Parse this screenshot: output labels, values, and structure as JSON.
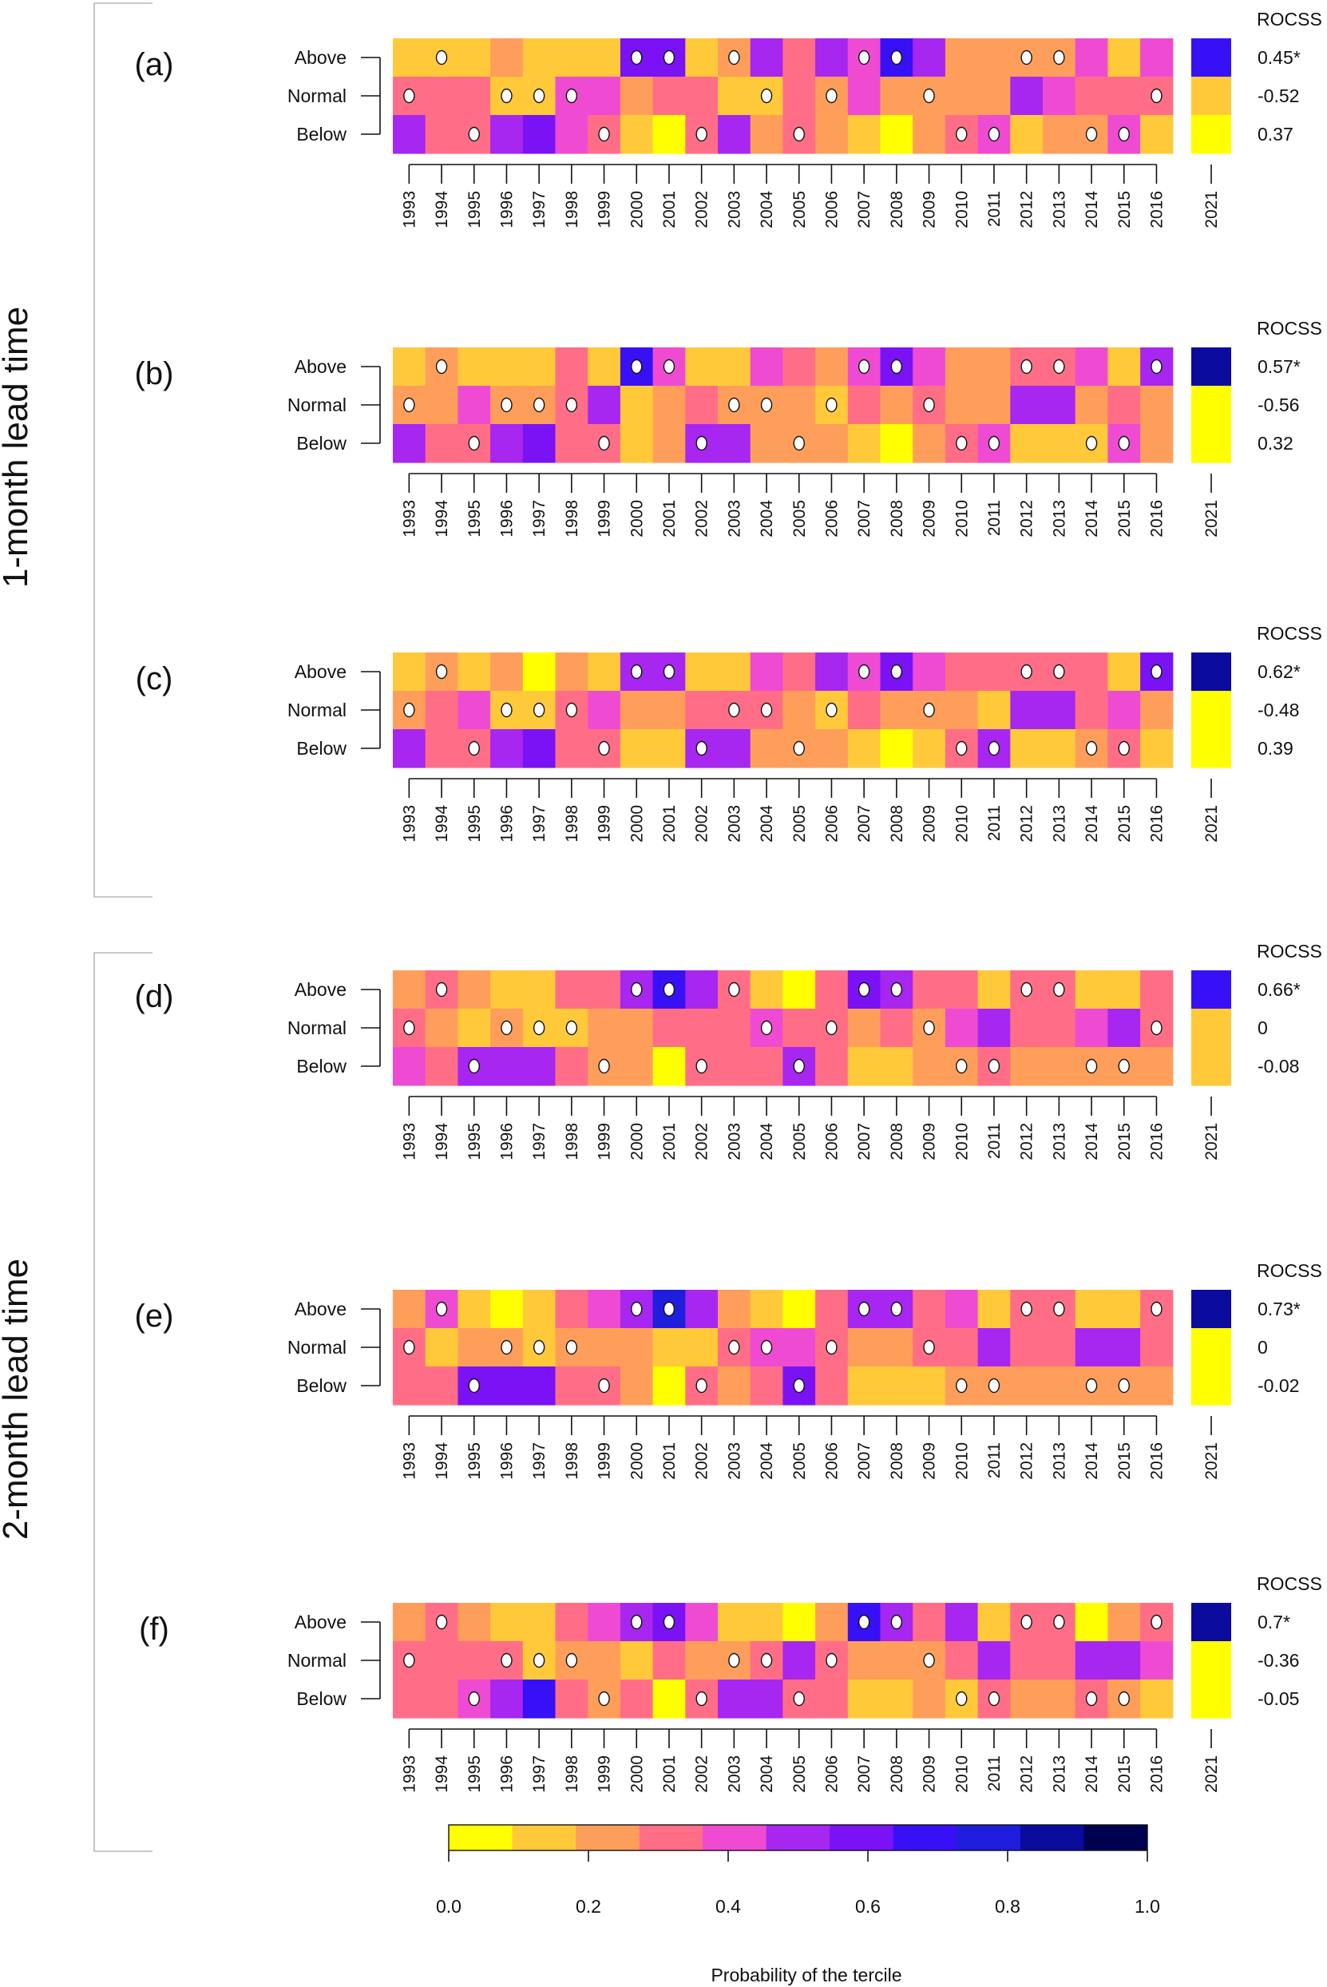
{
  "lead_times": [
    "1-month lead time",
    "2-month lead time"
  ],
  "rocss_title": "ROCSS",
  "colorbar": {
    "title": "Probability of the tercile",
    "ticks": [
      "0.0",
      "0.2",
      "0.4",
      "0.6",
      "0.8",
      "1.0"
    ],
    "colors": [
      "#FFFF00",
      "#FFC93A",
      "#FF9E5A",
      "#FF6E86",
      "#EE4BD2",
      "#A726F0",
      "#7A12F5",
      "#3810F5",
      "#1E1EDC",
      "#0B0B9E",
      "#000050"
    ]
  },
  "chart_data": {
    "type": "heatmap",
    "colorbar_label": "Probability of the tercile",
    "colorbar_range": [
      0,
      1
    ],
    "years": [
      "1993",
      "1994",
      "1995",
      "1996",
      "1997",
      "1998",
      "1999",
      "2000",
      "2001",
      "2002",
      "2003",
      "2004",
      "2005",
      "2006",
      "2007",
      "2008",
      "2009",
      "2010",
      "2011",
      "2012",
      "2013",
      "2014",
      "2015",
      "2016"
    ],
    "forecast_year": "2021",
    "rows": [
      "Above",
      "Normal",
      "Below"
    ],
    "panels": [
      {
        "label": "(a)",
        "group": "1-month lead time",
        "values": [
          [
            0.15,
            0.15,
            0.15,
            0.25,
            0.15,
            0.15,
            0.15,
            0.65,
            0.65,
            0.15,
            0.25,
            0.55,
            0.35,
            0.55,
            0.45,
            0.75,
            0.55,
            0.25,
            0.25,
            0.25,
            0.25,
            0.45,
            0.15,
            0.45
          ],
          [
            0.35,
            0.35,
            0.35,
            0.15,
            0.15,
            0.45,
            0.45,
            0.25,
            0.35,
            0.35,
            0.15,
            0.15,
            0.35,
            0.25,
            0.45,
            0.25,
            0.25,
            0.25,
            0.25,
            0.55,
            0.45,
            0.35,
            0.35,
            0.35
          ],
          [
            0.55,
            0.35,
            0.35,
            0.55,
            0.65,
            0.45,
            0.35,
            0.15,
            0.05,
            0.35,
            0.55,
            0.25,
            0.35,
            0.25,
            0.15,
            0.05,
            0.25,
            0.35,
            0.45,
            0.15,
            0.25,
            0.25,
            0.45,
            0.15
          ]
        ],
        "observed": [
          "Normal",
          "Above",
          "Below",
          "Normal",
          "Normal",
          "Normal",
          "Below",
          "Above",
          "Above",
          "Below",
          "Above",
          "Normal",
          "Below",
          "Normal",
          "Above",
          "Above",
          "Normal",
          "Below",
          "Below",
          "Above",
          "Above",
          "Below",
          "Below",
          "Normal"
        ],
        "forecast_2021": [
          0.75,
          0.15,
          0.05
        ],
        "rocss": [
          "0.45*",
          "-0.52",
          "0.37"
        ]
      },
      {
        "label": "(b)",
        "group": "1-month lead time",
        "values": [
          [
            0.15,
            0.25,
            0.15,
            0.15,
            0.15,
            0.35,
            0.15,
            0.75,
            0.45,
            0.15,
            0.15,
            0.45,
            0.35,
            0.25,
            0.45,
            0.65,
            0.45,
            0.25,
            0.25,
            0.35,
            0.35,
            0.45,
            0.15,
            0.55
          ],
          [
            0.25,
            0.25,
            0.45,
            0.25,
            0.25,
            0.35,
            0.55,
            0.15,
            0.25,
            0.35,
            0.25,
            0.25,
            0.25,
            0.15,
            0.35,
            0.25,
            0.35,
            0.25,
            0.25,
            0.55,
            0.55,
            0.25,
            0.35,
            0.25
          ],
          [
            0.55,
            0.35,
            0.35,
            0.55,
            0.65,
            0.35,
            0.35,
            0.15,
            0.25,
            0.55,
            0.55,
            0.25,
            0.25,
            0.25,
            0.15,
            0.05,
            0.25,
            0.35,
            0.45,
            0.15,
            0.15,
            0.15,
            0.45,
            0.25
          ]
        ],
        "observed": [
          "Normal",
          "Above",
          "Below",
          "Normal",
          "Normal",
          "Normal",
          "Below",
          "Above",
          "Above",
          "Below",
          "Normal",
          "Normal",
          "Below",
          "Normal",
          "Above",
          "Above",
          "Normal",
          "Below",
          "Below",
          "Above",
          "Above",
          "Below",
          "Below",
          "Above"
        ],
        "forecast_2021": [
          0.95,
          0.05,
          0.05
        ],
        "rocss": [
          "0.57*",
          "-0.56",
          "0.32"
        ]
      },
      {
        "label": "(c)",
        "group": "1-month lead time",
        "values": [
          [
            0.15,
            0.25,
            0.15,
            0.25,
            0.05,
            0.25,
            0.15,
            0.55,
            0.55,
            0.15,
            0.15,
            0.45,
            0.35,
            0.55,
            0.45,
            0.65,
            0.45,
            0.35,
            0.35,
            0.35,
            0.35,
            0.35,
            0.15,
            0.65
          ],
          [
            0.25,
            0.35,
            0.45,
            0.15,
            0.15,
            0.35,
            0.45,
            0.25,
            0.25,
            0.35,
            0.35,
            0.35,
            0.25,
            0.15,
            0.35,
            0.25,
            0.25,
            0.25,
            0.15,
            0.55,
            0.55,
            0.35,
            0.45,
            0.25
          ],
          [
            0.55,
            0.35,
            0.35,
            0.55,
            0.65,
            0.35,
            0.35,
            0.15,
            0.15,
            0.55,
            0.55,
            0.25,
            0.25,
            0.25,
            0.15,
            0.05,
            0.15,
            0.35,
            0.55,
            0.15,
            0.15,
            0.25,
            0.35,
            0.15
          ]
        ],
        "observed": [
          "Normal",
          "Above",
          "Below",
          "Normal",
          "Normal",
          "Normal",
          "Below",
          "Above",
          "Above",
          "Below",
          "Normal",
          "Normal",
          "Below",
          "Normal",
          "Above",
          "Above",
          "Normal",
          "Below",
          "Below",
          "Above",
          "Above",
          "Below",
          "Below",
          "Above"
        ],
        "forecast_2021": [
          0.95,
          0.05,
          0.05
        ],
        "rocss": [
          "0.62*",
          "-0.48",
          "0.39"
        ]
      },
      {
        "label": "(d)",
        "group": "2-month lead time",
        "values": [
          [
            0.25,
            0.35,
            0.25,
            0.15,
            0.15,
            0.35,
            0.35,
            0.55,
            0.75,
            0.55,
            0.35,
            0.15,
            0.05,
            0.35,
            0.65,
            0.55,
            0.35,
            0.35,
            0.15,
            0.35,
            0.35,
            0.15,
            0.15,
            0.35
          ],
          [
            0.35,
            0.25,
            0.15,
            0.25,
            0.15,
            0.15,
            0.25,
            0.25,
            0.35,
            0.35,
            0.35,
            0.45,
            0.35,
            0.35,
            0.25,
            0.35,
            0.25,
            0.45,
            0.55,
            0.35,
            0.35,
            0.45,
            0.55,
            0.35
          ],
          [
            0.45,
            0.35,
            0.55,
            0.55,
            0.55,
            0.35,
            0.25,
            0.25,
            0.05,
            0.35,
            0.35,
            0.35,
            0.55,
            0.35,
            0.15,
            0.15,
            0.25,
            0.25,
            0.35,
            0.25,
            0.25,
            0.25,
            0.25,
            0.25
          ]
        ],
        "observed": [
          "Normal",
          "Above",
          "Below",
          "Normal",
          "Normal",
          "Normal",
          "Below",
          "Above",
          "Above",
          "Below",
          "Above",
          "Normal",
          "Below",
          "Normal",
          "Above",
          "Above",
          "Normal",
          "Below",
          "Below",
          "Above",
          "Above",
          "Below",
          "Below",
          "Normal"
        ],
        "forecast_2021": [
          0.75,
          0.15,
          0.15
        ],
        "rocss": [
          "0.66*",
          "0",
          "-0.08"
        ]
      },
      {
        "label": "(e)",
        "group": "2-month lead time",
        "values": [
          [
            0.25,
            0.45,
            0.15,
            0.05,
            0.15,
            0.35,
            0.45,
            0.55,
            0.85,
            0.55,
            0.25,
            0.15,
            0.05,
            0.35,
            0.55,
            0.55,
            0.35,
            0.45,
            0.15,
            0.35,
            0.35,
            0.15,
            0.15,
            0.35
          ],
          [
            0.35,
            0.15,
            0.25,
            0.25,
            0.15,
            0.25,
            0.25,
            0.25,
            0.15,
            0.15,
            0.35,
            0.45,
            0.45,
            0.35,
            0.25,
            0.25,
            0.35,
            0.35,
            0.55,
            0.35,
            0.35,
            0.55,
            0.55,
            0.35
          ],
          [
            0.35,
            0.35,
            0.65,
            0.65,
            0.65,
            0.35,
            0.35,
            0.25,
            0.05,
            0.35,
            0.25,
            0.35,
            0.65,
            0.35,
            0.15,
            0.15,
            0.15,
            0.25,
            0.25,
            0.25,
            0.25,
            0.25,
            0.25,
            0.25
          ]
        ],
        "observed": [
          "Normal",
          "Above",
          "Below",
          "Normal",
          "Normal",
          "Normal",
          "Below",
          "Above",
          "Above",
          "Below",
          "Normal",
          "Normal",
          "Below",
          "Normal",
          "Above",
          "Above",
          "Normal",
          "Below",
          "Below",
          "Above",
          "Above",
          "Below",
          "Below",
          "Above"
        ],
        "forecast_2021": [
          0.95,
          0.05,
          0.05
        ],
        "rocss": [
          "0.73*",
          "0",
          "-0.02"
        ]
      },
      {
        "label": "(f)",
        "group": "2-month lead time",
        "values": [
          [
            0.25,
            0.35,
            0.25,
            0.15,
            0.15,
            0.35,
            0.45,
            0.55,
            0.65,
            0.45,
            0.15,
            0.15,
            0.05,
            0.25,
            0.75,
            0.55,
            0.35,
            0.55,
            0.15,
            0.35,
            0.35,
            0.05,
            0.25,
            0.35
          ],
          [
            0.35,
            0.35,
            0.35,
            0.35,
            0.15,
            0.25,
            0.25,
            0.15,
            0.35,
            0.25,
            0.25,
            0.35,
            0.55,
            0.35,
            0.25,
            0.25,
            0.25,
            0.35,
            0.55,
            0.35,
            0.35,
            0.55,
            0.55,
            0.45
          ],
          [
            0.35,
            0.35,
            0.45,
            0.55,
            0.75,
            0.35,
            0.25,
            0.35,
            0.05,
            0.35,
            0.55,
            0.55,
            0.35,
            0.35,
            0.15,
            0.15,
            0.25,
            0.15,
            0.35,
            0.25,
            0.25,
            0.35,
            0.25,
            0.15
          ]
        ],
        "observed": [
          "Normal",
          "Above",
          "Below",
          "Normal",
          "Normal",
          "Normal",
          "Below",
          "Above",
          "Above",
          "Below",
          "Normal",
          "Normal",
          "Below",
          "Normal",
          "Above",
          "Above",
          "Normal",
          "Below",
          "Below",
          "Above",
          "Above",
          "Below",
          "Below",
          "Above"
        ],
        "forecast_2021": [
          0.95,
          0.05,
          0.05
        ],
        "rocss": [
          "0.7*",
          "-0.36",
          "-0.05"
        ]
      }
    ]
  }
}
